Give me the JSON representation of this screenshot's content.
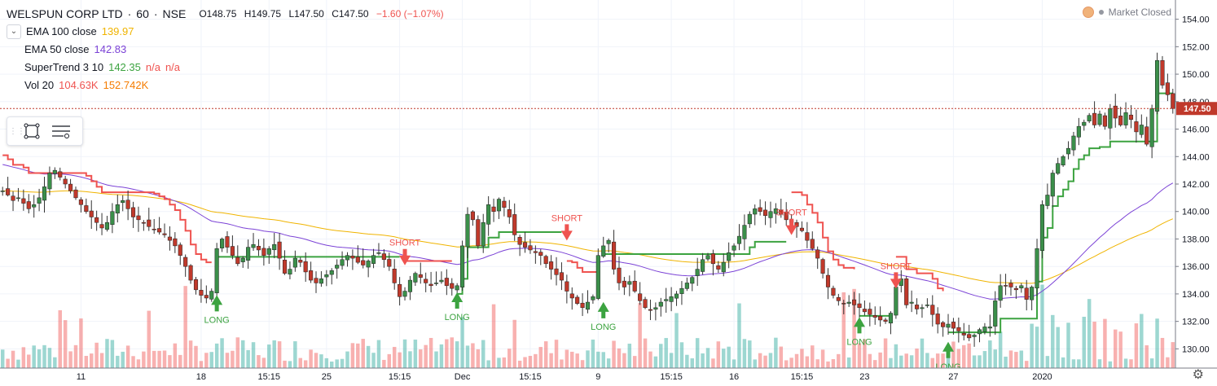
{
  "header": {
    "symbol": "WELSPUN CORP LTD",
    "interval": "60",
    "exchange": "NSE",
    "open": "O148.75",
    "high": "H149.75",
    "low": "L147.50",
    "close": "C147.50",
    "change": "−1.60 (−1.07%)",
    "market_status": "Market Closed"
  },
  "indicators": [
    {
      "label": "EMA 100 close",
      "values": [
        "139.97"
      ],
      "color": "#f0b400"
    },
    {
      "label": "EMA 50 close",
      "values": [
        "142.83"
      ],
      "color": "#7b42d6"
    },
    {
      "label": "SuperTrend 3 10",
      "values": [
        "142.35",
        "n/a",
        "n/a"
      ],
      "color": "#3ca340"
    },
    {
      "label": "Vol 20",
      "values": [
        "104.63K",
        "152.742K"
      ],
      "color": "#ef5350"
    }
  ],
  "colors": {
    "up": "#26a69a",
    "down": "#ef5350",
    "candle_up": "#3b8f4a",
    "candle_down": "#c0392b",
    "supertrend_up": "#3ca340",
    "supertrend_down": "#ef5350",
    "ema50": "#7b42d6",
    "ema100": "#f0b400"
  },
  "icons": {
    "collapse": "chevron-down-icon",
    "rect_tool": "rectangle-tool-icon",
    "menu": "list-menu-icon",
    "settings": "gear-icon"
  },
  "chart_data": {
    "type": "candlestick",
    "y_ticks": [
      130,
      132,
      134,
      136,
      138,
      140,
      142,
      144,
      146,
      148,
      150,
      152,
      154
    ],
    "y_tick_labels": [
      "130.00",
      "132.00",
      "134.00",
      "136.00",
      "138.00",
      "140.00",
      "142.00",
      "144.00",
      "146.00",
      "148.00",
      "150.00",
      "152.00",
      "154.00"
    ],
    "ylim": [
      128.6,
      155.4
    ],
    "x_tick_labels": [
      {
        "label": "11",
        "bar": 15
      },
      {
        "label": "18",
        "bar": 38
      },
      {
        "label": "15:15",
        "bar": 51
      },
      {
        "label": "25",
        "bar": 62
      },
      {
        "label": "15:15",
        "bar": 76
      },
      {
        "label": "Dec",
        "bar": 88
      },
      {
        "label": "15:15",
        "bar": 101
      },
      {
        "label": "9",
        "bar": 114
      },
      {
        "label": "15:15",
        "bar": 128
      },
      {
        "label": "16",
        "bar": 140
      },
      {
        "label": "15:15",
        "bar": 153
      },
      {
        "label": "23",
        "bar": 165
      },
      {
        "label": "27",
        "bar": 182
      },
      {
        "label": "2020",
        "bar": 199
      }
    ],
    "last_price": 147.5,
    "last_price_label": "147.50",
    "signals": [
      {
        "label": "LONG",
        "bar": 41,
        "dir": "up",
        "price": 133.2
      },
      {
        "label": "SHORT",
        "bar": 77,
        "dir": "down",
        "price": 136.8
      },
      {
        "label": "LONG",
        "bar": 87,
        "dir": "up",
        "price": 133.4
      },
      {
        "label": "SHORT",
        "bar": 108,
        "dir": "down",
        "price": 138.6
      },
      {
        "label": "LONG",
        "bar": 115,
        "dir": "up",
        "price": 132.7
      },
      {
        "label": "SHORT",
        "bar": 151,
        "dir": "down",
        "price": 139.0
      },
      {
        "label": "LONG",
        "bar": 164,
        "dir": "up",
        "price": 131.6
      },
      {
        "label": "SHORT",
        "bar": 171,
        "dir": "down",
        "price": 135.1
      },
      {
        "label": "LONG",
        "bar": 181,
        "dir": "up",
        "price": 129.8
      }
    ],
    "close_series": [
      141.5,
      141.2,
      140.8,
      141.0,
      140.6,
      140.2,
      140.5,
      141.0,
      141.8,
      142.8,
      143.0,
      142.5,
      142.0,
      141.5,
      141.0,
      140.5,
      140.0,
      139.6,
      139.2,
      138.8,
      139.2,
      140.0,
      140.5,
      140.8,
      140.2,
      139.6,
      139.4,
      139.2,
      138.9,
      138.7,
      138.5,
      138.3,
      137.9,
      137.5,
      136.8,
      136.0,
      135.0,
      134.3,
      133.9,
      133.7,
      134.2,
      137.3,
      138.0,
      137.4,
      136.8,
      136.2,
      136.6,
      137.4,
      137.6,
      137.2,
      136.8,
      137.3,
      137.6,
      136.6,
      135.5,
      135.8,
      136.6,
      136.3,
      135.6,
      135.0,
      134.8,
      135.1,
      135.4,
      135.7,
      136.1,
      136.5,
      136.8,
      136.6,
      136.3,
      136.1,
      136.4,
      136.8,
      137.0,
      136.5,
      136.0,
      134.8,
      133.8,
      134.2,
      135.0,
      135.5,
      135.2,
      134.8,
      134.6,
      134.8,
      135.0,
      134.6,
      134.4,
      134.6,
      137.5,
      139.8,
      139.4,
      137.5,
      139.2,
      140.5,
      140.0,
      140.9,
      140.3,
      139.6,
      138.3,
      137.6,
      137.4,
      137.2,
      137.0,
      136.8,
      136.2,
      135.8,
      135.4,
      135.0,
      134.2,
      133.7,
      133.3,
      133.0,
      133.4,
      133.8,
      136.8,
      137.5,
      137.9,
      135.8,
      134.8,
      134.5,
      134.9,
      134.2,
      133.5,
      133.0,
      132.8,
      133.0,
      133.4,
      133.6,
      133.8,
      134.0,
      134.4,
      134.8,
      135.2,
      135.8,
      136.5,
      136.8,
      136.2,
      135.8,
      136.3,
      137.0,
      137.5,
      138.2,
      139.0,
      139.8,
      140.2,
      140.0,
      139.7,
      140.0,
      140.2,
      139.8,
      139.4,
      139.2,
      138.9,
      138.6,
      137.9,
      137.3,
      136.6,
      135.5,
      134.5,
      133.9,
      133.5,
      133.3,
      133.4,
      133.2,
      133.0,
      132.7,
      132.5,
      132.3,
      132.1,
      132.0,
      132.6,
      134.5,
      135.1,
      133.2,
      133.4,
      132.9,
      133.0,
      133.2,
      132.5,
      131.8,
      131.6,
      131.8,
      131.5,
      131.3,
      131.0,
      130.8,
      131.0,
      131.4,
      131.6,
      131.6,
      133.5,
      134.6,
      134.6,
      134.5,
      134.3,
      134.6,
      133.6,
      134.5,
      137.3,
      140.5,
      141.2,
      142.8,
      143.5,
      144.0,
      144.6,
      145.5,
      146.2,
      146.5,
      147.0,
      146.3,
      147.1,
      146.2,
      147.5,
      146.8,
      146.3,
      147.2,
      146.7,
      145.8,
      146.3,
      144.9,
      147.5,
      151.0,
      149.2,
      148.5,
      147.5
    ],
    "volume_relative": "Volume bars shown at bottom scale; last Vol 20 value 104.63K"
  }
}
